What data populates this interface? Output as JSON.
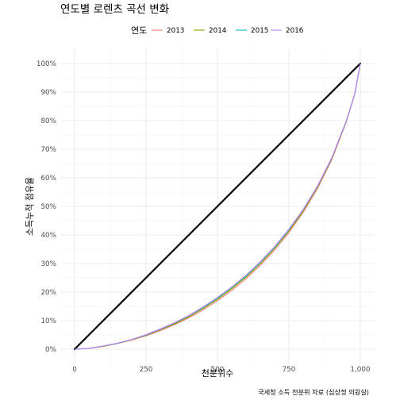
{
  "chart_data": {
    "type": "line",
    "title": "연도별 로렌츠 곡선 변화",
    "xlabel": "천분위수",
    "ylabel": "소득누적 점유율",
    "caption": "국세청 소득 천분위 자료 (심상정 의원실)",
    "legend": {
      "title": "연도",
      "position": "top"
    },
    "xlim": [
      0,
      1000
    ],
    "ylim": [
      0,
      100
    ],
    "x_ticks": [
      0,
      250,
      500,
      750,
      1000
    ],
    "x_tick_labels": [
      "0",
      "250",
      "500",
      "750",
      "1,000"
    ],
    "y_ticks": [
      0,
      10,
      20,
      30,
      40,
      50,
      60,
      70,
      80,
      90,
      100
    ],
    "y_tick_labels": [
      "0%",
      "10%",
      "20%",
      "30%",
      "40%",
      "50%",
      "60%",
      "70%",
      "80%",
      "90%",
      "100%"
    ],
    "grid": true,
    "x": [
      0,
      50,
      100,
      150,
      200,
      250,
      300,
      350,
      400,
      450,
      500,
      550,
      600,
      650,
      700,
      750,
      800,
      850,
      900,
      950,
      980,
      1000
    ],
    "series": [
      {
        "name": "2013",
        "color": "#F8766D",
        "values": [
          0,
          0.3,
          1.0,
          2.0,
          3.2,
          4.7,
          6.5,
          8.6,
          11.0,
          13.8,
          17.0,
          20.6,
          24.7,
          29.4,
          34.7,
          40.8,
          47.9,
          56.2,
          66.3,
          79.3,
          89.0,
          100
        ]
      },
      {
        "name": "2014",
        "color": "#7CAE00",
        "values": [
          0,
          0.3,
          1.0,
          2.0,
          3.3,
          4.9,
          6.8,
          8.9,
          11.4,
          14.3,
          17.5,
          21.2,
          25.3,
          30.0,
          35.3,
          41.4,
          48.4,
          56.7,
          66.7,
          79.5,
          89.1,
          100
        ]
      },
      {
        "name": "2015",
        "color": "#00BFC4",
        "values": [
          0,
          0.3,
          1.1,
          2.1,
          3.4,
          5.0,
          7.0,
          9.2,
          11.7,
          14.6,
          17.9,
          21.6,
          25.7,
          30.4,
          35.7,
          41.8,
          48.8,
          57.0,
          66.9,
          79.6,
          89.2,
          100
        ]
      },
      {
        "name": "2016",
        "color": "#C77CFF",
        "values": [
          0,
          0.3,
          1.1,
          2.1,
          3.4,
          5.1,
          7.1,
          9.3,
          11.8,
          14.8,
          18.1,
          21.8,
          25.9,
          30.6,
          35.9,
          42.0,
          48.9,
          57.1,
          67.0,
          79.7,
          89.2,
          100
        ]
      }
    ],
    "reference_line": {
      "x": [
        0,
        1000
      ],
      "y": [
        0,
        100
      ],
      "color": "#000000"
    }
  }
}
